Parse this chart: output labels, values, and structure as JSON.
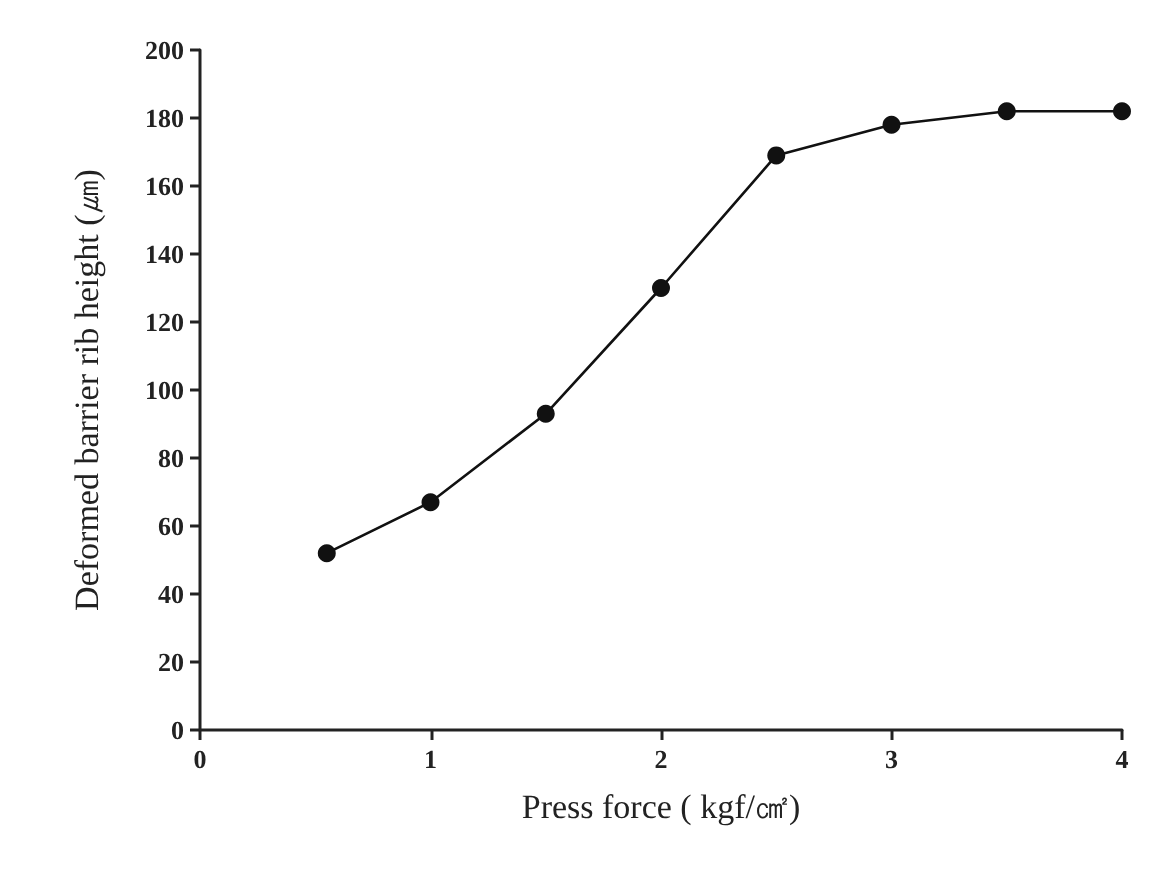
{
  "chart_data": {
    "type": "line",
    "xlabel": "Press force ( kgf/㎠)",
    "ylabel": "Deformed barrier rib height (㎛)",
    "x": [
      0.55,
      1,
      1.5,
      2,
      2.5,
      3,
      3.5,
      4
    ],
    "series": [
      {
        "color": "#111111",
        "values": [
          52,
          67,
          93,
          130,
          169,
          178,
          182,
          182
        ]
      }
    ],
    "xlim": [
      0,
      4
    ],
    "xticks": [
      0,
      1,
      2,
      3,
      4
    ],
    "ylim": [
      0,
      200
    ],
    "yticks": [
      0,
      20,
      40,
      60,
      80,
      100,
      120,
      140,
      160,
      180,
      200
    ],
    "grid": false,
    "marker": "circle",
    "line_style": "solid"
  }
}
